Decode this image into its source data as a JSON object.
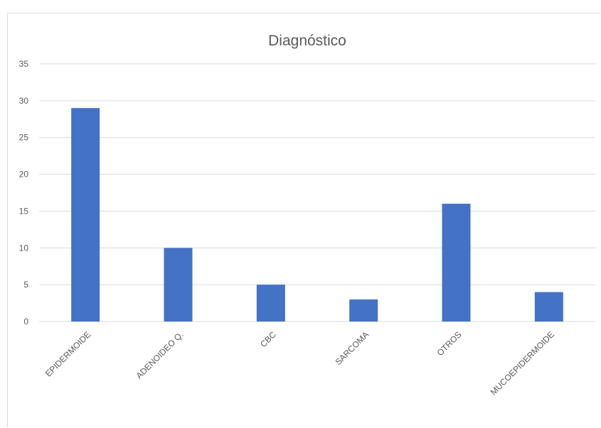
{
  "chart_data": {
    "type": "bar",
    "title": "Diagnóstico",
    "categories": [
      "EPIDERMOIDE",
      "ADENOIDEO Q.",
      "CBC",
      "SARCOMA",
      "OTROS",
      "MUCOEPIDERMOIDE"
    ],
    "values": [
      29,
      10,
      5,
      3,
      16,
      4
    ],
    "ylim": [
      0,
      35
    ],
    "yticks": [
      0,
      5,
      10,
      15,
      20,
      25,
      30,
      35
    ],
    "xlabel": "",
    "ylabel": "",
    "grid": true,
    "legend": "none",
    "bar_color": "#4472c4",
    "grid_color": "#d9d9d9"
  }
}
